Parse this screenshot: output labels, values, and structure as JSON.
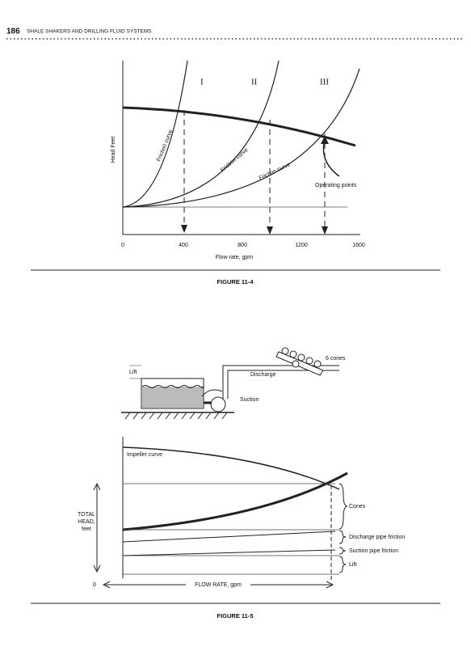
{
  "header": {
    "page_number": "186",
    "running_title": "SHALE SHAKERS AND DRILLING FLUID SYSTEMS"
  },
  "figure_11_4": {
    "caption": "FIGURE 11-4",
    "y_label": "Head Feet",
    "x_label": "Flow rate, gpm",
    "x_ticks": [
      "0",
      "400",
      "800",
      "1200",
      "1600"
    ],
    "regions": [
      "I",
      "II",
      "III"
    ],
    "curve_labels": [
      "Friction curve",
      "Friction curve",
      "Friction curve"
    ],
    "annotation": "Operating points"
  },
  "figure_11_5": {
    "caption": "FIGURE 11-5",
    "cones_label": "6 cones",
    "lift_top": "Lift",
    "discharge_label": "Discharge",
    "suction_label": "Suction",
    "impeller_label": "Impeller curve",
    "y_label_lines": [
      "TOTAL",
      "HEAD,",
      "feet"
    ],
    "x_origin": "0",
    "x_label": "FLOW RATE, gpm",
    "components": [
      "Cones",
      "Discharge pipe friction",
      "Suction pipe friction",
      "Lift"
    ]
  }
}
